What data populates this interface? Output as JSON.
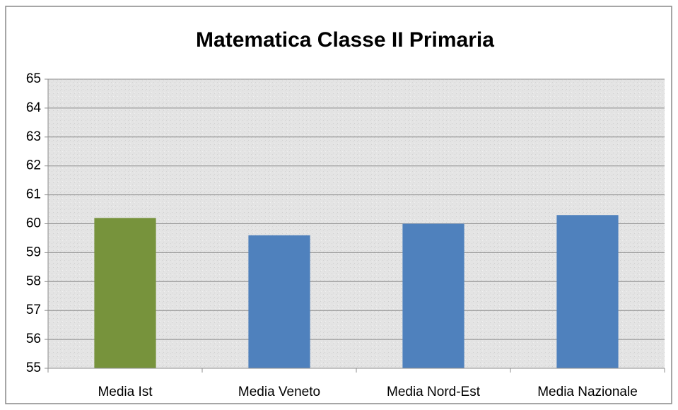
{
  "chart_data": {
    "type": "bar",
    "title": "Matematica Classe II Primaria",
    "categories": [
      "Media Ist",
      "Media Veneto",
      "Media Nord-Est",
      "Media Nazionale"
    ],
    "values": [
      60.2,
      59.6,
      60.0,
      60.3
    ],
    "colors": [
      "#77933c",
      "#4f81bd",
      "#4f81bd",
      "#4f81bd"
    ],
    "ylim": [
      55,
      65
    ],
    "yticks": [
      55,
      56,
      57,
      58,
      59,
      60,
      61,
      62,
      63,
      64,
      65
    ],
    "grid": true
  }
}
